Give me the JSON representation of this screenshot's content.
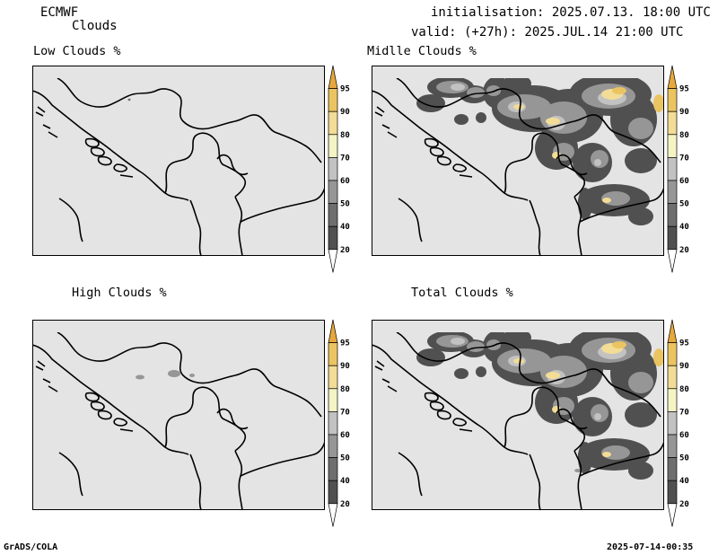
{
  "header": {
    "model": "ECMWF",
    "product": "Clouds",
    "init_line": "initialisation: 2025.07.13. 18:00 UTC",
    "valid_line": "valid: (+27h): 2025.JUL.14 21:00 UTC"
  },
  "panels": [
    {
      "id": "low",
      "title": "Low Clouds %"
    },
    {
      "id": "middle",
      "title": "Midlle Clouds %"
    },
    {
      "id": "high",
      "title": "High Clouds %"
    },
    {
      "id": "total",
      "title": "Total Clouds %"
    }
  ],
  "colorbar": {
    "levels": [
      "20",
      "40",
      "50",
      "60",
      "70",
      "80",
      "90",
      "95"
    ],
    "colors": [
      "#ffffff",
      "#505050",
      "#6e6e6e",
      "#969696",
      "#c2c2c2",
      "#f4f4c4",
      "#f2dc96",
      "#ebc462",
      "#e6a83c"
    ]
  },
  "map_colors": {
    "background": "#e4e4e4",
    "border": "#000000"
  },
  "footer": {
    "left": "GrADS/COLA",
    "right": "2025-07-14-00:35"
  }
}
